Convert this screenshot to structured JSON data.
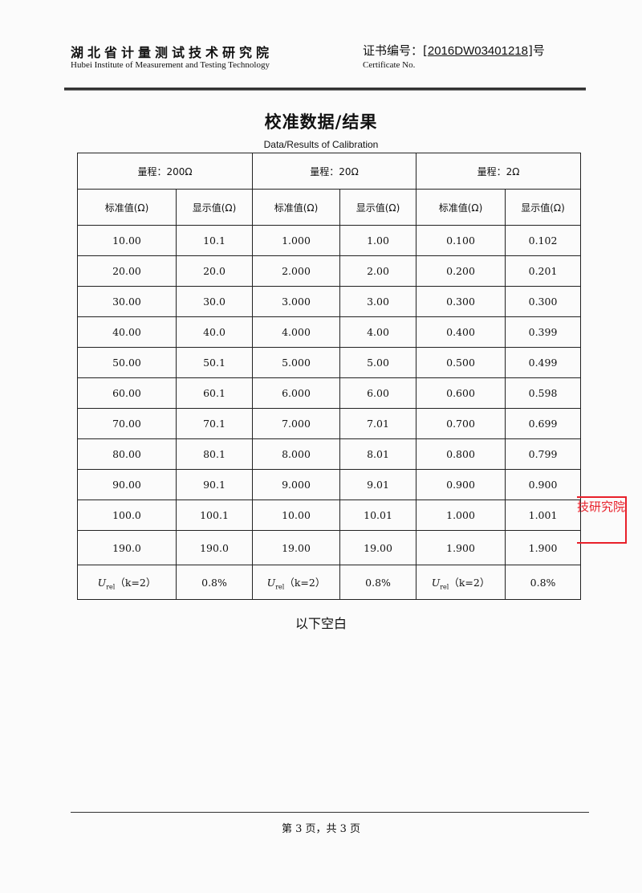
{
  "header": {
    "institute_cn": "湖北省计量测试技术研究院",
    "institute_en": "Hubei Institute of Measurement and Testing Technology",
    "cert_label_cn": "证书编号：",
    "cert_open": "[",
    "cert_number": "2016DW03401218",
    "cert_close": "]号",
    "cert_label_en": "Certificate No."
  },
  "title_cn": "校准数据/结果",
  "title_en": "Data/Results of Calibration",
  "table": {
    "ranges": [
      "量程：200Ω",
      "量程：20Ω",
      "量程：2Ω"
    ],
    "subheaders": [
      "标准值(Ω)",
      "显示值(Ω)",
      "标准值(Ω)",
      "显示值(Ω)",
      "标准值(Ω)",
      "显示值(Ω)"
    ],
    "rows": [
      [
        "10.00",
        "10.1",
        "1.000",
        "1.00",
        "0.100",
        "0.102"
      ],
      [
        "20.00",
        "20.0",
        "2.000",
        "2.00",
        "0.200",
        "0.201"
      ],
      [
        "30.00",
        "30.0",
        "3.000",
        "3.00",
        "0.300",
        "0.300"
      ],
      [
        "40.00",
        "40.0",
        "4.000",
        "4.00",
        "0.400",
        "0.399"
      ],
      [
        "50.00",
        "50.1",
        "5.000",
        "5.00",
        "0.500",
        "0.499"
      ],
      [
        "60.00",
        "60.1",
        "6.000",
        "6.00",
        "0.600",
        "0.598"
      ],
      [
        "70.00",
        "70.1",
        "7.000",
        "7.01",
        "0.700",
        "0.699"
      ],
      [
        "80.00",
        "80.1",
        "8.000",
        "8.01",
        "0.800",
        "0.799"
      ],
      [
        "90.00",
        "90.1",
        "9.000",
        "9.01",
        "0.900",
        "0.900"
      ],
      [
        "100.0",
        "100.1",
        "10.00",
        "10.01",
        "1.000",
        "1.001"
      ],
      [
        "190.0",
        "190.0",
        "19.00",
        "19.00",
        "1.900",
        "1.900"
      ]
    ],
    "uncertainty": {
      "symbol": "U",
      "subscript": "rel",
      "k_label": "（k=2）",
      "values": [
        "0.8%",
        "0.8%",
        "0.8%"
      ]
    }
  },
  "blank_note": "以下空白",
  "stamp": {
    "text": "技研究院",
    "color": "#e8202a"
  },
  "footer": "第 3 页，共 3 页"
}
